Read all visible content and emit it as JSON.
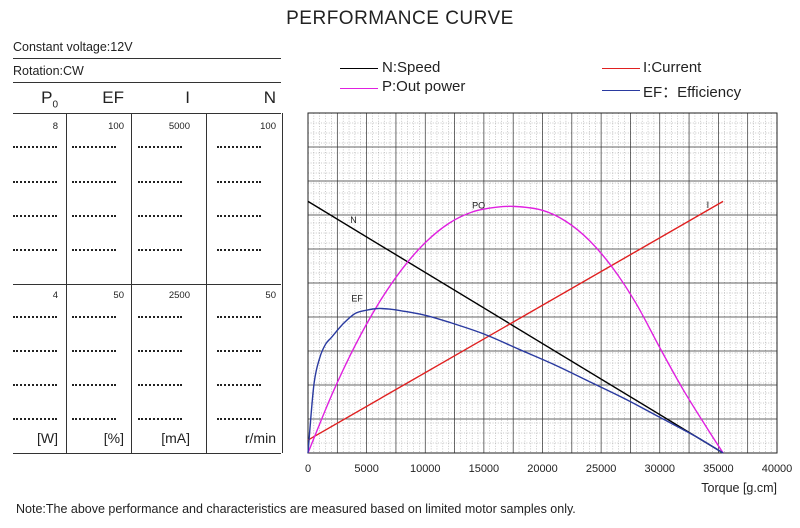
{
  "title": "PERFORMANCE CURVE",
  "info": {
    "voltage": "Constant voltage:12V",
    "rotation": "Rotation:CW"
  },
  "columns": [
    {
      "label": "P",
      "sub": "0",
      "top_value": "8",
      "mid_value": "4",
      "unit": "[W]"
    },
    {
      "label": "EF",
      "sub": "",
      "top_value": "100",
      "mid_value": "50",
      "unit": "[%]"
    },
    {
      "label": "I",
      "sub": "",
      "top_value": "5000",
      "mid_value": "2500",
      "unit": "[mA]"
    },
    {
      "label": "N",
      "sub": "",
      "top_value": "100",
      "mid_value": "50",
      "unit": "r/min"
    }
  ],
  "legend": {
    "speed": "N:Speed",
    "power": "P:Out power",
    "current": "I:Current",
    "efficiency": "EF：Efficiency"
  },
  "colors": {
    "speed": "#000000",
    "power": "#e020e0",
    "current": "#e02020",
    "efficiency": "#2a3aa0",
    "grid": "#444444",
    "background": "#ffffff"
  },
  "note": "Note:The above performance and characteristics are measured based on limited motor samples only.",
  "chart_data": {
    "type": "line",
    "xlabel": "Torque [g.cm]",
    "xlim": [
      0,
      40000
    ],
    "x_ticks": [
      0,
      5000,
      10000,
      15000,
      20000,
      25000,
      30000,
      35000,
      40000
    ],
    "x_tick_labels": [
      "0",
      "5000",
      "10000",
      "15000",
      "20000",
      "25000",
      "30000",
      "35000",
      "40000"
    ],
    "grid": true,
    "series": [
      {
        "key": "speed",
        "name": "N:Speed",
        "curve_label": "N",
        "axis": "N (r/min)",
        "ylim": [
          0,
          100
        ],
        "x": [
          0,
          35400
        ],
        "values": [
          74,
          0
        ]
      },
      {
        "key": "current",
        "name": "I:Current",
        "curve_label": "I",
        "axis": "I (mA)",
        "ylim": [
          0,
          5000
        ],
        "x": [
          0,
          35400
        ],
        "values": [
          190,
          3700
        ]
      },
      {
        "key": "power",
        "name": "P:Out power",
        "curve_label": "PO",
        "axis": "P0 (W)",
        "ylim": [
          0,
          8
        ],
        "x": [
          0,
          2000,
          4000,
          6000,
          8000,
          10000,
          12000,
          14000,
          16000,
          17700,
          20000,
          22000,
          24000,
          26000,
          28000,
          30000,
          32000,
          34000,
          35400
        ],
        "values": [
          0,
          1.35,
          2.52,
          3.51,
          4.32,
          4.95,
          5.4,
          5.67,
          5.78,
          5.8,
          5.71,
          5.45,
          5.0,
          4.35,
          3.51,
          2.48,
          1.49,
          0.6,
          0
        ]
      },
      {
        "key": "efficiency",
        "name": "EF：Efficiency",
        "curve_label": "EF",
        "axis": "EF (%)",
        "ylim": [
          0,
          100
        ],
        "x": [
          0,
          500,
          1000,
          1500,
          2000,
          3000,
          4000,
          5000,
          6000,
          7000,
          8000,
          10000,
          12000,
          15000,
          18000,
          21000,
          24000,
          27000,
          30000,
          33000,
          35400
        ],
        "values": [
          0,
          20,
          28,
          32,
          34,
          38,
          41,
          42,
          42.5,
          42.3,
          41.8,
          40.5,
          38.5,
          35,
          30.5,
          26,
          21,
          16,
          10.5,
          5,
          0
        ]
      }
    ]
  }
}
